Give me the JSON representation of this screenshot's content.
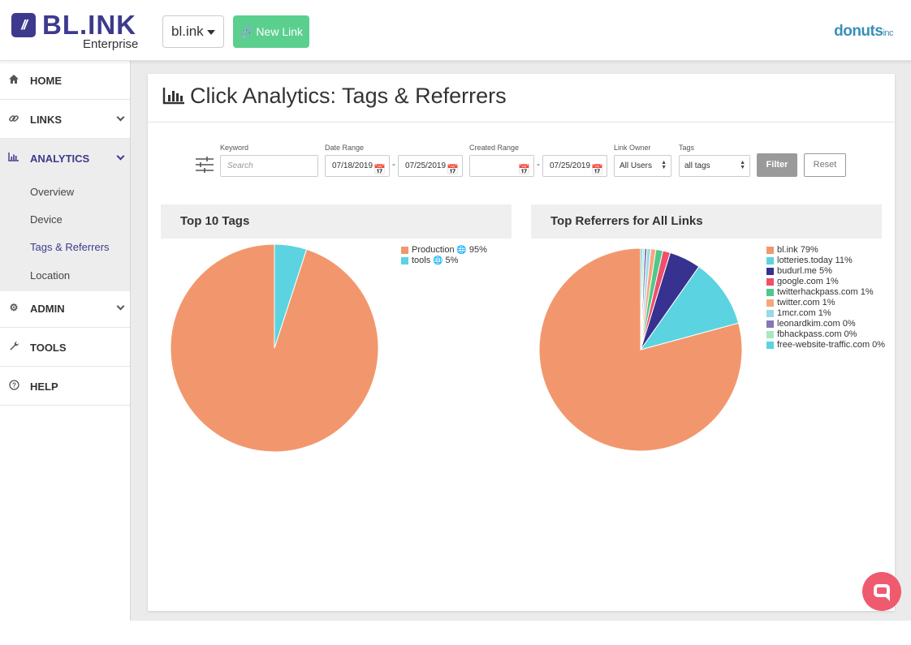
{
  "header": {
    "logo_mark": "//",
    "logo_word": "BL.INK",
    "logo_sub": "Enterprise",
    "domain": "bl.ink",
    "new_link": "New Link",
    "partner": "donuts",
    "partner_suffix": "inc"
  },
  "sidebar": {
    "items": [
      {
        "label": "HOME",
        "icon": "home-icon"
      },
      {
        "label": "LINKS",
        "icon": "link-icon"
      },
      {
        "label": "ANALYTICS",
        "icon": "bar-chart-icon"
      },
      {
        "label": "ADMIN",
        "icon": "gear-icon"
      },
      {
        "label": "TOOLS",
        "icon": "wrench-icon"
      },
      {
        "label": "HELP",
        "icon": "question-icon"
      }
    ],
    "sub": [
      "Overview",
      "Device",
      "Tags & Referrers",
      "Location"
    ]
  },
  "page": {
    "title": "Click Analytics: Tags & Referrers"
  },
  "filters": {
    "keyword_label": "Keyword",
    "keyword_placeholder": "Search",
    "date_range_label": "Date Range",
    "date_from": "07/18/2019",
    "date_to": "07/25/2019",
    "created_range_label": "Created Range",
    "created_from": "",
    "created_to": "07/25/2019",
    "dash": "-",
    "owner_label": "Link Owner",
    "owner_value": "All Users",
    "tags_label": "Tags",
    "tags_value": "all tags",
    "filter_btn": "Filter",
    "reset_btn": "Reset"
  },
  "panels": {
    "tags_title": "Top 10 Tags",
    "referrers_title": "Top Referrers for All Links"
  },
  "chart_data": [
    {
      "type": "pie",
      "title": "Top 10 Tags",
      "series": [
        {
          "name": "Production",
          "value": 95,
          "label": "95%",
          "color": "#f2976d",
          "globe": true
        },
        {
          "name": "tools",
          "value": 5,
          "label": "5%",
          "color": "#5bd3e0",
          "globe": true
        }
      ]
    },
    {
      "type": "pie",
      "title": "Top Referrers for All Links",
      "series": [
        {
          "name": "bl.ink",
          "value": 79,
          "label": "79%",
          "color": "#f2976d"
        },
        {
          "name": "lotteries.today",
          "value": 11,
          "label": "11%",
          "color": "#5bd3e0"
        },
        {
          "name": "budurl.me",
          "value": 5,
          "label": "5%",
          "color": "#37328f"
        },
        {
          "name": "google.com",
          "value": 1.2,
          "label": "1%",
          "color": "#ef4f6a"
        },
        {
          "name": "twitterhackpass.com",
          "value": 1.1,
          "label": "1%",
          "color": "#4fc88a"
        },
        {
          "name": "twitter.com",
          "value": 0.8,
          "label": "1%",
          "color": "#f5a77e"
        },
        {
          "name": "1mcr.com",
          "value": 0.6,
          "label": "1%",
          "color": "#9dd8e6"
        },
        {
          "name": "leonardkim.com",
          "value": 0.4,
          "label": "0%",
          "color": "#8478b5"
        },
        {
          "name": "fbhackpass.com",
          "value": 0.3,
          "label": "0%",
          "color": "#a8e6c4"
        },
        {
          "name": "free-website-traffic.com",
          "value": 0.3,
          "label": "0%",
          "color": "#5bd3e0"
        }
      ]
    }
  ]
}
